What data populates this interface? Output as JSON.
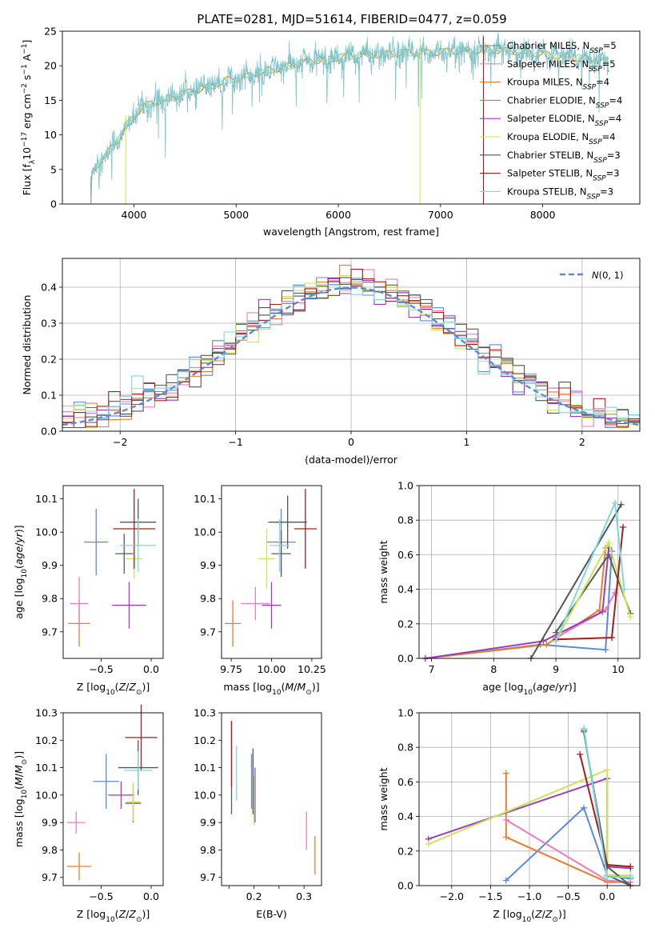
{
  "title": "PLATE=0281, MJD=51614, FIBERID=0477, z=0.059",
  "colors": {
    "c1": "#5b8ad8",
    "c2": "#e67e33",
    "c3": "#e57fbe",
    "c4": "#5a5a5a",
    "c5": "#9a3fb8",
    "c6": "#cfe35a",
    "c7": "#555555",
    "c8": "#a41e1e",
    "c9": "#7fd8e0",
    "gray": "#7f7f7f",
    "green": "#6aa84f"
  },
  "chart_data": [
    {
      "id": "spectrum",
      "type": "line",
      "xlabel": "wavelength [Angstrom, rest frame]",
      "ylabel": "Flux [f_λ10^-17 erg cm^-2 s^-1 A^-1]",
      "xlim": [
        3300,
        8950
      ],
      "ylim": [
        0,
        25
      ],
      "xticks": [
        4000,
        5000,
        6000,
        7000,
        8000
      ],
      "yticks": [
        0,
        5,
        10,
        15,
        20,
        25
      ],
      "grid": false,
      "legend_position": "right",
      "continuum": [
        [
          3580,
          4.8
        ],
        [
          3700,
          6.5
        ],
        [
          3800,
          8.6
        ],
        [
          3900,
          10.3
        ],
        [
          4000,
          12.8
        ],
        [
          4100,
          14.2
        ],
        [
          4300,
          15.1
        ],
        [
          4500,
          16.0
        ],
        [
          4700,
          16.8
        ],
        [
          4900,
          17.9
        ],
        [
          5100,
          18.4
        ],
        [
          5300,
          19.3
        ],
        [
          5500,
          19.9
        ],
        [
          5700,
          20.6
        ],
        [
          5900,
          21.0
        ],
        [
          6100,
          21.4
        ],
        [
          6300,
          21.6
        ],
        [
          6500,
          21.7
        ],
        [
          6700,
          21.9
        ],
        [
          6900,
          21.9
        ],
        [
          7100,
          22.1
        ],
        [
          7300,
          22.2
        ],
        [
          7500,
          22.3
        ],
        [
          7700,
          22.1
        ],
        [
          7900,
          21.8
        ],
        [
          8100,
          21.5
        ],
        [
          8300,
          21.2
        ],
        [
          8500,
          20.9
        ],
        [
          8650,
          20.7
        ]
      ],
      "absorption_features": [
        [
          3580,
          0.0
        ],
        [
          3934,
          11.0
        ],
        [
          3968,
          11.4
        ],
        [
          4101,
          13.0
        ],
        [
          4305,
          12.8
        ],
        [
          4861,
          15.5
        ],
        [
          5175,
          17.2
        ],
        [
          5270,
          17.0
        ],
        [
          5893,
          16.5
        ],
        [
          6563,
          20.0
        ]
      ],
      "artifacts": [
        [
          3920,
          0.0
        ],
        [
          6800,
          0.0
        ],
        [
          7420,
          0.0
        ]
      ],
      "legend": [
        {
          "label": "Chabrier MILES, N",
          "sub": "SSP",
          "tail": "=5",
          "color_key": "gray"
        },
        {
          "label": "Salpeter MILES, N",
          "sub": "SSP",
          "tail": "=5",
          "color_key": "c3"
        },
        {
          "label": "Kroupa MILES, N",
          "sub": "SSP",
          "tail": "=4",
          "color_key": "c2"
        },
        {
          "label": "Chabrier ELODIE, N",
          "sub": "SSP",
          "tail": "=4",
          "color_key": "green"
        },
        {
          "label": "Salpeter ELODIE, N",
          "sub": "SSP",
          "tail": "=4",
          "color_key": "c5"
        },
        {
          "label": "Kroupa ELODIE, N",
          "sub": "SSP",
          "tail": "=4",
          "color_key": "c6"
        },
        {
          "label": "Chabrier STELIB, N",
          "sub": "SSP",
          "tail": "=3",
          "color_key": "c7"
        },
        {
          "label": "Salpeter STELIB, N",
          "sub": "SSP",
          "tail": "=3",
          "color_key": "c8"
        },
        {
          "label": "Kroupa STELIB, N",
          "sub": "SSP",
          "tail": "=3",
          "color_key": "c9"
        }
      ]
    },
    {
      "id": "residuals",
      "type": "histogram",
      "xlabel": "(data-model)/error",
      "ylabel": "Normed distribution",
      "xlim": [
        -2.5,
        2.5
      ],
      "ylim": [
        0,
        0.48
      ],
      "xticks": [
        -2,
        -1,
        0,
        1,
        2
      ],
      "yticks": [
        0.0,
        0.1,
        0.2,
        0.3,
        0.4
      ],
      "grid": true,
      "bin_width": 0.1,
      "reference_label": "N(0,1)",
      "legend_position": "top-right",
      "series_colors": [
        "c1",
        "c2",
        "c3",
        "c4",
        "c5",
        "c6",
        "c7",
        "c8",
        "c9"
      ]
    },
    {
      "id": "age_vs_Z",
      "type": "errorbar",
      "xlabel": "Z [log10(Z/Z⊙)]",
      "ylabel": "age [log10(age/yr)]",
      "xlim": [
        -0.88,
        0.12
      ],
      "ylim": [
        9.62,
        10.14
      ],
      "xticks": [
        -0.5,
        0.0
      ],
      "yticks": [
        9.7,
        9.8,
        9.9,
        10.0,
        10.1
      ],
      "points": [
        {
          "x": -0.55,
          "y": 9.97,
          "ex": 0.12,
          "ey": 0.1,
          "color_key": "c1"
        },
        {
          "x": -0.72,
          "y": 9.725,
          "ex": 0.11,
          "ey": 0.07,
          "color_key": "c2"
        },
        {
          "x": -0.72,
          "y": 9.785,
          "ex": 0.09,
          "ey": 0.08,
          "color_key": "c3"
        },
        {
          "x": -0.27,
          "y": 9.935,
          "ex": 0.09,
          "ey": 0.06,
          "color_key": "c4"
        },
        {
          "x": -0.22,
          "y": 9.78,
          "ex": 0.17,
          "ey": 0.07,
          "color_key": "c5"
        },
        {
          "x": -0.17,
          "y": 9.92,
          "ex": 0.08,
          "ey": 0.06,
          "color_key": "c6"
        },
        {
          "x": -0.13,
          "y": 10.03,
          "ex": 0.18,
          "ey": 0.07,
          "color_key": "c7"
        },
        {
          "x": -0.17,
          "y": 10.01,
          "ex": 0.21,
          "ey": 0.12,
          "color_key": "c8"
        },
        {
          "x": -0.13,
          "y": 9.96,
          "ex": 0.18,
          "ey": 0.08,
          "color_key": "c9"
        }
      ]
    },
    {
      "id": "age_vs_mass",
      "type": "errorbar",
      "xlabel": "mass [log10(M/M⊙)]",
      "ylabel": "",
      "xlim": [
        9.69,
        10.31
      ],
      "ylim": [
        9.62,
        10.14
      ],
      "xticks": [
        9.75,
        10.0,
        10.25
      ],
      "yticks": [
        9.7,
        9.8,
        9.9,
        10.0,
        10.1
      ],
      "points": [
        {
          "x": 10.06,
          "y": 9.97,
          "ex": 0.09,
          "ey": 0.1,
          "color_key": "c1"
        },
        {
          "x": 9.76,
          "y": 9.725,
          "ex": 0.05,
          "ey": 0.07,
          "color_key": "c2"
        },
        {
          "x": 9.9,
          "y": 9.785,
          "ex": 0.09,
          "ey": 0.05,
          "color_key": "c3"
        },
        {
          "x": 10.06,
          "y": 9.935,
          "ex": 0.06,
          "ey": 0.07,
          "color_key": "c4"
        },
        {
          "x": 10.0,
          "y": 9.78,
          "ex": 0.06,
          "ey": 0.07,
          "color_key": "c5"
        },
        {
          "x": 9.97,
          "y": 9.92,
          "ex": 0.05,
          "ey": 0.09,
          "color_key": "c6"
        },
        {
          "x": 10.1,
          "y": 10.03,
          "ex": 0.12,
          "ey": 0.08,
          "color_key": "c7"
        },
        {
          "x": 10.21,
          "y": 10.01,
          "ex": 0.07,
          "ey": 0.12,
          "color_key": "c8"
        },
        {
          "x": 10.05,
          "y": 9.96,
          "ex": 0.06,
          "ey": 0.08,
          "color_key": "c9"
        }
      ]
    },
    {
      "id": "weight_vs_age",
      "type": "line",
      "xlabel": "age [log10(age/yr)]",
      "ylabel": "mass weight",
      "xlim": [
        6.8,
        10.35
      ],
      "ylim": [
        0,
        1
      ],
      "xticks": [
        7,
        8,
        9,
        10
      ],
      "yticks": [
        0.0,
        0.2,
        0.4,
        0.6,
        0.8,
        1.0
      ],
      "grid": true,
      "series": [
        {
          "color_key": "c1",
          "points": [
            [
              6.9,
              0.0
            ],
            [
              8.75,
              0.08
            ],
            [
              9.8,
              0.05
            ],
            [
              9.9,
              0.62
            ]
          ]
        },
        {
          "color_key": "c2",
          "points": [
            [
              6.9,
              0.0
            ],
            [
              8.85,
              0.08
            ],
            [
              9.7,
              0.28
            ],
            [
              9.8,
              0.64
            ]
          ]
        },
        {
          "color_key": "c3",
          "points": [
            [
              9.0,
              0.12
            ],
            [
              9.8,
              0.28
            ],
            [
              9.95,
              0.38
            ]
          ]
        },
        {
          "color_key": "c4",
          "points": [
            [
              9.0,
              0.15
            ],
            [
              9.85,
              0.6
            ],
            [
              10.2,
              0.26
            ]
          ]
        },
        {
          "color_key": "c5",
          "points": [
            [
              6.9,
              0.0
            ],
            [
              8.8,
              0.1
            ],
            [
              9.75,
              0.27
            ],
            [
              9.85,
              0.64
            ]
          ]
        },
        {
          "color_key": "c6",
          "points": [
            [
              9.0,
              0.1
            ],
            [
              9.85,
              0.67
            ],
            [
              10.2,
              0.24
            ]
          ]
        },
        {
          "color_key": "c7",
          "points": [
            [
              8.6,
              0.0
            ],
            [
              10.05,
              0.89
            ]
          ]
        },
        {
          "color_key": "c8",
          "points": [
            [
              9.0,
              0.11
            ],
            [
              9.9,
              0.12
            ],
            [
              10.08,
              0.76
            ]
          ]
        },
        {
          "color_key": "c9",
          "points": [
            [
              9.0,
              0.1
            ],
            [
              9.95,
              0.9
            ],
            [
              10.1,
              0.4
            ]
          ]
        }
      ]
    },
    {
      "id": "mass_vs_Z",
      "type": "errorbar",
      "xlabel": "Z [log10(Z/Z⊙)]",
      "ylabel": "mass [log10(M/M⊙)]",
      "xlim": [
        -0.88,
        0.12
      ],
      "ylim": [
        9.67,
        10.3
      ],
      "xticks": [
        -0.5,
        0.0
      ],
      "yticks": [
        9.7,
        9.8,
        9.9,
        10.0,
        10.1,
        10.2,
        10.3
      ],
      "points": [
        {
          "x": -0.45,
          "y": 10.05,
          "ex": 0.13,
          "ey": 0.1,
          "color_key": "c1"
        },
        {
          "x": -0.72,
          "y": 9.74,
          "ex": 0.12,
          "ey": 0.05,
          "color_key": "c2"
        },
        {
          "x": -0.75,
          "y": 9.9,
          "ex": 0.09,
          "ey": 0.04,
          "color_key": "c3"
        },
        {
          "x": -0.18,
          "y": 9.97,
          "ex": 0.08,
          "ey": 0.07,
          "color_key": "c4"
        },
        {
          "x": -0.3,
          "y": 10.0,
          "ex": 0.13,
          "ey": 0.05,
          "color_key": "c5"
        },
        {
          "x": -0.18,
          "y": 9.975,
          "ex": 0.07,
          "ey": 0.07,
          "color_key": "c6"
        },
        {
          "x": -0.13,
          "y": 10.1,
          "ex": 0.2,
          "ey": 0.1,
          "color_key": "c7"
        },
        {
          "x": -0.1,
          "y": 10.21,
          "ex": 0.16,
          "ey": 0.12,
          "color_key": "c8"
        },
        {
          "x": -0.13,
          "y": 10.09,
          "ex": 0.14,
          "ey": 0.07,
          "color_key": "c9"
        }
      ]
    },
    {
      "id": "mass_vs_ebv",
      "type": "errorbar",
      "xlabel": "E(B-V)",
      "ylabel": "",
      "xlim": [
        0.135,
        0.335
      ],
      "ylim": [
        9.67,
        10.3
      ],
      "xticks": [
        0.15,
        0.2,
        0.25,
        0.3
      ],
      "yticks": [
        9.7,
        9.8,
        9.9,
        10.0,
        10.1,
        10.2,
        10.3
      ],
      "points": [
        {
          "x": 0.195,
          "y": 10.05,
          "ex": 0.0,
          "ey": 0.1,
          "color_key": "c1"
        },
        {
          "x": 0.322,
          "y": 9.78,
          "ex": 0.0,
          "ey": 0.07,
          "color_key": "c2"
        },
        {
          "x": 0.305,
          "y": 9.87,
          "ex": 0.0,
          "ey": 0.07,
          "color_key": "c3"
        },
        {
          "x": 0.155,
          "y": 10.1,
          "ex": 0.0,
          "ey": 0.17,
          "color_key": "c4"
        },
        {
          "x": 0.202,
          "y": 10.0,
          "ex": 0.0,
          "ey": 0.1,
          "color_key": "c5"
        },
        {
          "x": 0.2,
          "y": 9.98,
          "ex": 0.0,
          "ey": 0.09,
          "color_key": "c6"
        },
        {
          "x": 0.198,
          "y": 10.05,
          "ex": 0.0,
          "ey": 0.12,
          "color_key": "c7"
        },
        {
          "x": 0.155,
          "y": 10.15,
          "ex": 0.0,
          "ey": 0.12,
          "color_key": "c8"
        },
        {
          "x": 0.165,
          "y": 10.08,
          "ex": 0.0,
          "ey": 0.1,
          "color_key": "c9"
        }
      ]
    },
    {
      "id": "weight_vs_Z",
      "type": "line",
      "xlabel": "Z [log10(Z/Z⊙)]",
      "ylabel": "mass weight",
      "xlim": [
        -2.42,
        0.42
      ],
      "ylim": [
        0,
        1
      ],
      "xticks": [
        -2.0,
        -1.5,
        -1.0,
        -0.5,
        0.0
      ],
      "yticks": [
        0.0,
        0.2,
        0.4,
        0.6,
        0.8,
        1.0
      ],
      "grid": true,
      "series": [
        {
          "color_key": "c1",
          "points": [
            [
              -1.3,
              0.03
            ],
            [
              -0.3,
              0.45
            ],
            [
              0.0,
              0.06
            ],
            [
              0.3,
              0.04
            ]
          ]
        },
        {
          "color_key": "c2",
          "points": [
            [
              -1.3,
              0.65
            ],
            [
              -1.3,
              0.28
            ],
            [
              0.0,
              0.02
            ],
            [
              0.3,
              0.02
            ]
          ]
        },
        {
          "color_key": "c3",
          "points": [
            [
              -1.3,
              0.38
            ],
            [
              0.0,
              0.03
            ],
            [
              0.3,
              0.02
            ]
          ]
        },
        {
          "color_key": "c4",
          "points": [
            [
              -0.3,
              0.9
            ],
            [
              0.0,
              0.06
            ],
            [
              0.3,
              0.0
            ]
          ]
        },
        {
          "color_key": "c5",
          "points": [
            [
              -2.3,
              0.27
            ],
            [
              0.0,
              0.62
            ],
            [
              0.0,
              0.11
            ],
            [
              0.3,
              0.1
            ]
          ]
        },
        {
          "color_key": "c6",
          "points": [
            [
              -2.3,
              0.24
            ],
            [
              0.0,
              0.67
            ],
            [
              0.0,
              0.06
            ],
            [
              0.3,
              0.06
            ]
          ]
        },
        {
          "color_key": "c7",
          "points": [
            [
              -0.3,
              0.89
            ],
            [
              0.0,
              0.11
            ],
            [
              0.3,
              0.0
            ]
          ]
        },
        {
          "color_key": "c8",
          "points": [
            [
              -0.35,
              0.76
            ],
            [
              0.0,
              0.12
            ],
            [
              0.3,
              0.11
            ]
          ]
        },
        {
          "color_key": "c9",
          "points": [
            [
              -0.3,
              0.91
            ],
            [
              0.0,
              0.05
            ],
            [
              0.3,
              0.05
            ]
          ]
        }
      ]
    }
  ]
}
